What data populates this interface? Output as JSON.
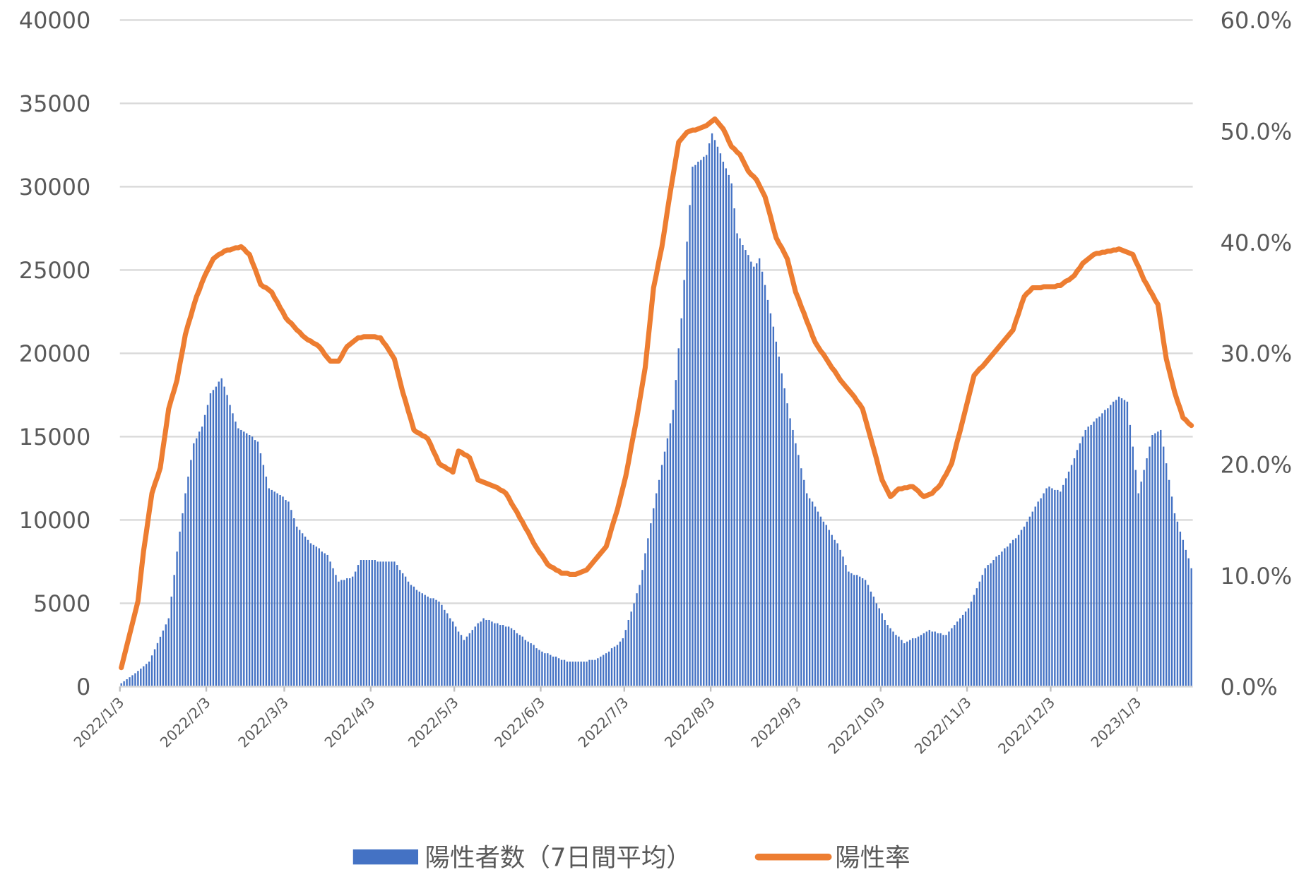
{
  "chart_data": {
    "type": "bar",
    "categories": [
      "2022/1/3",
      null,
      null,
      null,
      null,
      null,
      null,
      null,
      null,
      null,
      null,
      null,
      null,
      null,
      null,
      null,
      null,
      null,
      null,
      null,
      null,
      null,
      null,
      null,
      null,
      null,
      null,
      null,
      null,
      null,
      null,
      "2022/2/3",
      null,
      null,
      null,
      null,
      null,
      null,
      null,
      null,
      null,
      null,
      null,
      null,
      null,
      null,
      null,
      null,
      null,
      null,
      null,
      null,
      null,
      null,
      null,
      null,
      null,
      null,
      null,
      "2022/3/3",
      null,
      null,
      null,
      null,
      null,
      null,
      null,
      null,
      null,
      null,
      null,
      null,
      null,
      null,
      null,
      null,
      null,
      null,
      null,
      null,
      null,
      null,
      null,
      null,
      null,
      null,
      null,
      null,
      null,
      null,
      "2022/4/3",
      null,
      null,
      null,
      null,
      null,
      null,
      null,
      null,
      null,
      null,
      null,
      null,
      null,
      null,
      null,
      null,
      null,
      null,
      null,
      null,
      null,
      null,
      null,
      null,
      null,
      null,
      null,
      null,
      null,
      "2022/5/3",
      null,
      null,
      null,
      null,
      null,
      null,
      null,
      null,
      null,
      null,
      null,
      null,
      null,
      null,
      null,
      null,
      null,
      null,
      null,
      null,
      null,
      null,
      null,
      null,
      null,
      null,
      null,
      null,
      null,
      null,
      "2022/6/3",
      null,
      null,
      null,
      null,
      null,
      null,
      null,
      null,
      null,
      null,
      null,
      null,
      null,
      null,
      null,
      null,
      null,
      null,
      null,
      null,
      null,
      null,
      null,
      null,
      null,
      null,
      null,
      null,
      null,
      "2022/7/3",
      null,
      null,
      null,
      null,
      null,
      null,
      null,
      null,
      null,
      null,
      null,
      null,
      null,
      null,
      null,
      null,
      null,
      null,
      null,
      null,
      null,
      null,
      null,
      null,
      null,
      null,
      null,
      null,
      null,
      null,
      "2022/8/3",
      null,
      null,
      null,
      null,
      null,
      null,
      null,
      null,
      null,
      null,
      null,
      null,
      null,
      null,
      null,
      null,
      null,
      null,
      null,
      null,
      null,
      null,
      null,
      null,
      null,
      null,
      null,
      null,
      null,
      null,
      "2022/9/3",
      null,
      null,
      null,
      null,
      null,
      null,
      null,
      null,
      null,
      null,
      null,
      null,
      null,
      null,
      null,
      null,
      null,
      null,
      null,
      null,
      null,
      null,
      null,
      null,
      null,
      null,
      null,
      null,
      null,
      "2022/10/3",
      null,
      null,
      null,
      null,
      null,
      null,
      null,
      null,
      null,
      null,
      null,
      null,
      null,
      null,
      null,
      null,
      null,
      null,
      null,
      null,
      null,
      null,
      null,
      null,
      null,
      null,
      null,
      null,
      null,
      null,
      "2022/11/3",
      null,
      null,
      null,
      null,
      null,
      null,
      null,
      null,
      null,
      null,
      null,
      null,
      null,
      null,
      null,
      null,
      null,
      null,
      null,
      null,
      null,
      null,
      null,
      null,
      null,
      null,
      null,
      null,
      null,
      "2022/12/3",
      null,
      null,
      null,
      null,
      null,
      null,
      null,
      null,
      null,
      null,
      null,
      null,
      null,
      null,
      null,
      null,
      null,
      null,
      null,
      null,
      null,
      null,
      null,
      null,
      null,
      null,
      null,
      null,
      null,
      null,
      "2023/1/3",
      null,
      null,
      null,
      null,
      null,
      null,
      null,
      null,
      null,
      null,
      null,
      null,
      null,
      null,
      null,
      null,
      null,
      null,
      null
    ],
    "series": [
      {
        "name": "陽性者数（7日間平均）",
        "type": "bar",
        "color": "#4472c4",
        "values": [
          200,
          320,
          440,
          560,
          680,
          800,
          940,
          1080,
          1220,
          1360,
          1500,
          1870,
          2240,
          2610,
          2990,
          3360,
          3730,
          4100,
          5400,
          6700,
          8100,
          9300,
          10400,
          11600,
          12600,
          13600,
          14600,
          14900,
          15300,
          15600,
          16300,
          16900,
          17600,
          17800,
          18000,
          18300,
          18500,
          18000,
          17500,
          16900,
          16400,
          15900,
          15500,
          15400,
          15300,
          15200,
          15100,
          15000,
          14800,
          14700,
          14000,
          13300,
          12600,
          11900,
          11800,
          11700,
          11600,
          11500,
          11400,
          11200,
          11100,
          10600,
          10100,
          9600,
          9400,
          9200,
          9000,
          8800,
          8600,
          8500,
          8400,
          8300,
          8100,
          8000,
          7900,
          7500,
          7100,
          6700,
          6300,
          6400,
          6400,
          6500,
          6500,
          6600,
          6900,
          7300,
          7600,
          7600,
          7600,
          7600,
          7600,
          7600,
          7500,
          7500,
          7500,
          7500,
          7500,
          7500,
          7500,
          7300,
          7000,
          6800,
          6600,
          6300,
          6100,
          6000,
          5800,
          5700,
          5600,
          5500,
          5400,
          5300,
          5300,
          5200,
          5100,
          4900,
          4600,
          4400,
          4100,
          3900,
          3600,
          3300,
          3100,
          2800,
          3000,
          3200,
          3400,
          3600,
          3800,
          3900,
          4100,
          4000,
          4000,
          3900,
          3800,
          3800,
          3700,
          3700,
          3600,
          3600,
          3500,
          3400,
          3200,
          3100,
          3000,
          2800,
          2700,
          2600,
          2500,
          2300,
          2200,
          2100,
          2000,
          2000,
          1900,
          1800,
          1800,
          1700,
          1600,
          1600,
          1500,
          1500,
          1500,
          1500,
          1500,
          1500,
          1500,
          1500,
          1600,
          1600,
          1600,
          1700,
          1800,
          1900,
          2000,
          2100,
          2300,
          2400,
          2500,
          2700,
          2900,
          3400,
          4000,
          4500,
          5000,
          5600,
          6100,
          7000,
          8000,
          8900,
          9800,
          10700,
          11600,
          12400,
          13300,
          14100,
          14900,
          15800,
          16600,
          18400,
          20300,
          22100,
          24400,
          26700,
          28900,
          31200,
          31300,
          31500,
          31600,
          31800,
          31900,
          32600,
          33200,
          32800,
          32400,
          32000,
          31500,
          31100,
          30700,
          30200,
          28700,
          27200,
          26900,
          26500,
          26200,
          25900,
          25500,
          25200,
          25400,
          25700,
          24900,
          24100,
          23200,
          22400,
          21600,
          20700,
          19800,
          18800,
          17900,
          17000,
          16100,
          15400,
          14600,
          13900,
          13100,
          12400,
          11600,
          11300,
          11100,
          10800,
          10500,
          10200,
          9900,
          9700,
          9400,
          9100,
          8800,
          8600,
          8200,
          7800,
          7300,
          6900,
          6800,
          6700,
          6700,
          6600,
          6500,
          6400,
          6100,
          5700,
          5400,
          5000,
          4700,
          4400,
          4000,
          3700,
          3500,
          3300,
          3100,
          3000,
          2800,
          2600,
          2700,
          2800,
          2900,
          2900,
          3000,
          3100,
          3200,
          3300,
          3400,
          3300,
          3300,
          3200,
          3200,
          3100,
          3100,
          3300,
          3500,
          3700,
          3900,
          4100,
          4300,
          4500,
          4700,
          5100,
          5500,
          5900,
          6300,
          6700,
          7100,
          7300,
          7400,
          7600,
          7800,
          7900,
          8100,
          8300,
          8400,
          8600,
          8800,
          8900,
          9100,
          9400,
          9600,
          9900,
          10200,
          10500,
          10800,
          11100,
          11300,
          11600,
          11900,
          12000,
          11900,
          11800,
          11800,
          11700,
          12100,
          12500,
          12900,
          13300,
          13700,
          14200,
          14600,
          15000,
          15400,
          15600,
          15700,
          15900,
          16100,
          16200,
          16400,
          16600,
          16700,
          16900,
          17100,
          17200,
          17400,
          17300,
          17200,
          17100,
          15700,
          14400,
          13000,
          11600,
          12300,
          13000,
          13700,
          14400,
          15100,
          15200,
          15300,
          15400,
          14400,
          13400,
          12400,
          11400,
          10400,
          9900,
          9300,
          8800,
          8200,
          7700,
          7100
        ]
      },
      {
        "name": "陽性率",
        "type": "line",
        "axis": "y2",
        "color": "#ed7d31",
        "values": [
          1.7,
          2.7,
          3.7,
          4.7,
          5.7,
          6.7,
          7.7,
          10.0,
          12.2,
          13.9,
          15.7,
          17.4,
          18.2,
          18.9,
          19.7,
          21.5,
          23.2,
          25,
          25.9,
          26.7,
          27.6,
          29.0,
          30.3,
          31.7,
          32.6,
          33.4,
          34.3,
          35.1,
          35.7,
          36.4,
          37,
          37.5,
          38.0,
          38.5,
          38.7,
          38.9,
          39.0,
          39.2,
          39.3,
          39.3,
          39.4,
          39.5,
          39.5,
          39.6,
          39.4,
          39.1,
          38.9,
          38.2,
          37.6,
          36.9,
          36.2,
          36.0,
          35.9,
          35.7,
          35.5,
          35.0,
          34.6,
          34.1,
          33.7,
          33.2,
          32.9,
          32.7,
          32.4,
          32.1,
          31.9,
          31.6,
          31.4,
          31.2,
          31.1,
          30.9,
          30.8,
          30.6,
          30.3,
          29.9,
          29.6,
          29.3,
          29.3,
          29.3,
          29.3,
          29.7,
          30.2,
          30.6,
          30.8,
          31.0,
          31.2,
          31.4,
          31.4,
          31.5,
          31.5,
          31.5,
          31.5,
          31.5,
          31.4,
          31.4,
          31.0,
          30.7,
          30.3,
          29.9,
          29.5,
          28.5,
          27.5,
          26.5,
          25.7,
          24.8,
          24.0,
          23.1,
          22.9,
          22.8,
          22.6,
          22.5,
          22.3,
          21.8,
          21.2,
          20.7,
          20.1,
          19.9,
          19.8,
          19.6,
          19.5,
          19.3,
          20.3,
          21.2,
          21.1,
          20.9,
          20.8,
          20.6,
          19.9,
          19.3,
          18.6,
          18.5,
          18.4,
          18.3,
          18.2,
          18.1,
          18.0,
          17.9,
          17.7,
          17.6,
          17.4,
          17.0,
          16.5,
          16.1,
          15.7,
          15.2,
          14.8,
          14.3,
          13.9,
          13.4,
          12.9,
          12.5,
          12.1,
          11.8,
          11.4,
          11.0,
          10.8,
          10.7,
          10.5,
          10.4,
          10.2,
          10.2,
          10.2,
          10.1,
          10.1,
          10.1,
          10.2,
          10.3,
          10.4,
          10.5,
          10.8,
          11.1,
          11.4,
          11.7,
          12.0,
          12.3,
          12.6,
          13.4,
          14.3,
          15.1,
          15.9,
          16.9,
          17.9,
          18.9,
          20.2,
          21.6,
          22.9,
          24.2,
          25.7,
          27.2,
          28.7,
          31.1,
          33.5,
          35.9,
          37.1,
          38.4,
          39.6,
          41.2,
          42.9,
          44.5,
          46.0,
          47.5,
          49.0,
          49.3,
          49.6,
          49.9,
          50.0,
          50.1,
          50.1,
          50.2,
          50.3,
          50.4,
          50.5,
          50.7,
          50.9,
          51.1,
          50.8,
          50.5,
          50.2,
          49.7,
          49.1,
          48.6,
          48.4,
          48.1,
          47.9,
          47.4,
          46.9,
          46.4,
          46.1,
          45.9,
          45.6,
          45.1,
          44.6,
          44.1,
          43.2,
          42.3,
          41.3,
          40.4,
          39.9,
          39.5,
          39.0,
          38.5,
          37.5,
          36.5,
          35.5,
          34.9,
          34.2,
          33.6,
          32.9,
          32.3,
          31.6,
          31.0,
          30.6,
          30.2,
          29.9,
          29.5,
          29.1,
          28.7,
          28.4,
          28.0,
          27.6,
          27.3,
          27.0,
          26.7,
          26.4,
          26.1,
          25.7,
          25.4,
          25.0,
          24.1,
          23.2,
          22.3,
          21.4,
          20.5,
          19.5,
          18.6,
          18.1,
          17.6,
          17.1,
          17.3,
          17.6,
          17.8,
          17.8,
          17.9,
          17.9,
          18.0,
          18.0,
          17.8,
          17.6,
          17.3,
          17.1,
          17.2,
          17.3,
          17.4,
          17.7,
          17.9,
          18.2,
          18.7,
          19.1,
          19.6,
          20.1,
          21.1,
          22.1,
          23.0,
          24.0,
          25.0,
          26.0,
          27.0,
          28.0,
          28.3,
          28.6,
          28.8,
          29.1,
          29.4,
          29.7,
          30.0,
          30.3,
          30.6,
          30.9,
          31.2,
          31.5,
          31.8,
          32.1,
          32.9,
          33.6,
          34.4,
          35.1,
          35.4,
          35.6,
          35.9,
          35.9,
          35.9,
          35.9,
          36.0,
          36.0,
          36.0,
          36.0,
          36.0,
          36.1,
          36.1,
          36.3,
          36.5,
          36.6,
          36.8,
          37.0,
          37.4,
          37.7,
          38.1,
          38.3,
          38.5,
          38.7,
          38.9,
          39.0,
          39.0,
          39.1,
          39.1,
          39.2,
          39.2,
          39.3,
          39.3,
          39.4,
          39.3,
          39.2,
          39.1,
          39.0,
          38.9,
          38.3,
          37.8,
          37.2,
          36.6,
          36.2,
          35.7,
          35.3,
          34.8,
          34.4,
          32.8,
          31.1,
          29.5,
          28.5,
          27.5,
          26.5,
          25.7,
          25.0,
          24.2,
          24.0,
          23.7,
          23.5
        ]
      }
    ],
    "ylim": [
      0,
      40000
    ],
    "yticks": [
      0,
      5000,
      10000,
      15000,
      20000,
      25000,
      30000,
      35000,
      40000
    ],
    "y2lim": [
      0,
      60
    ],
    "y2ticks": [
      {
        "value": 0,
        "label": "0.0%"
      },
      {
        "value": 10,
        "label": "10.0%"
      },
      {
        "value": 20,
        "label": "20.0%"
      },
      {
        "value": 30,
        "label": "30.0%"
      },
      {
        "value": 40,
        "label": "40.0%"
      },
      {
        "value": 50,
        "label": "50.0%"
      },
      {
        "value": 60,
        "label": "60.0%"
      }
    ],
    "grid": true,
    "legend": "bottom"
  }
}
